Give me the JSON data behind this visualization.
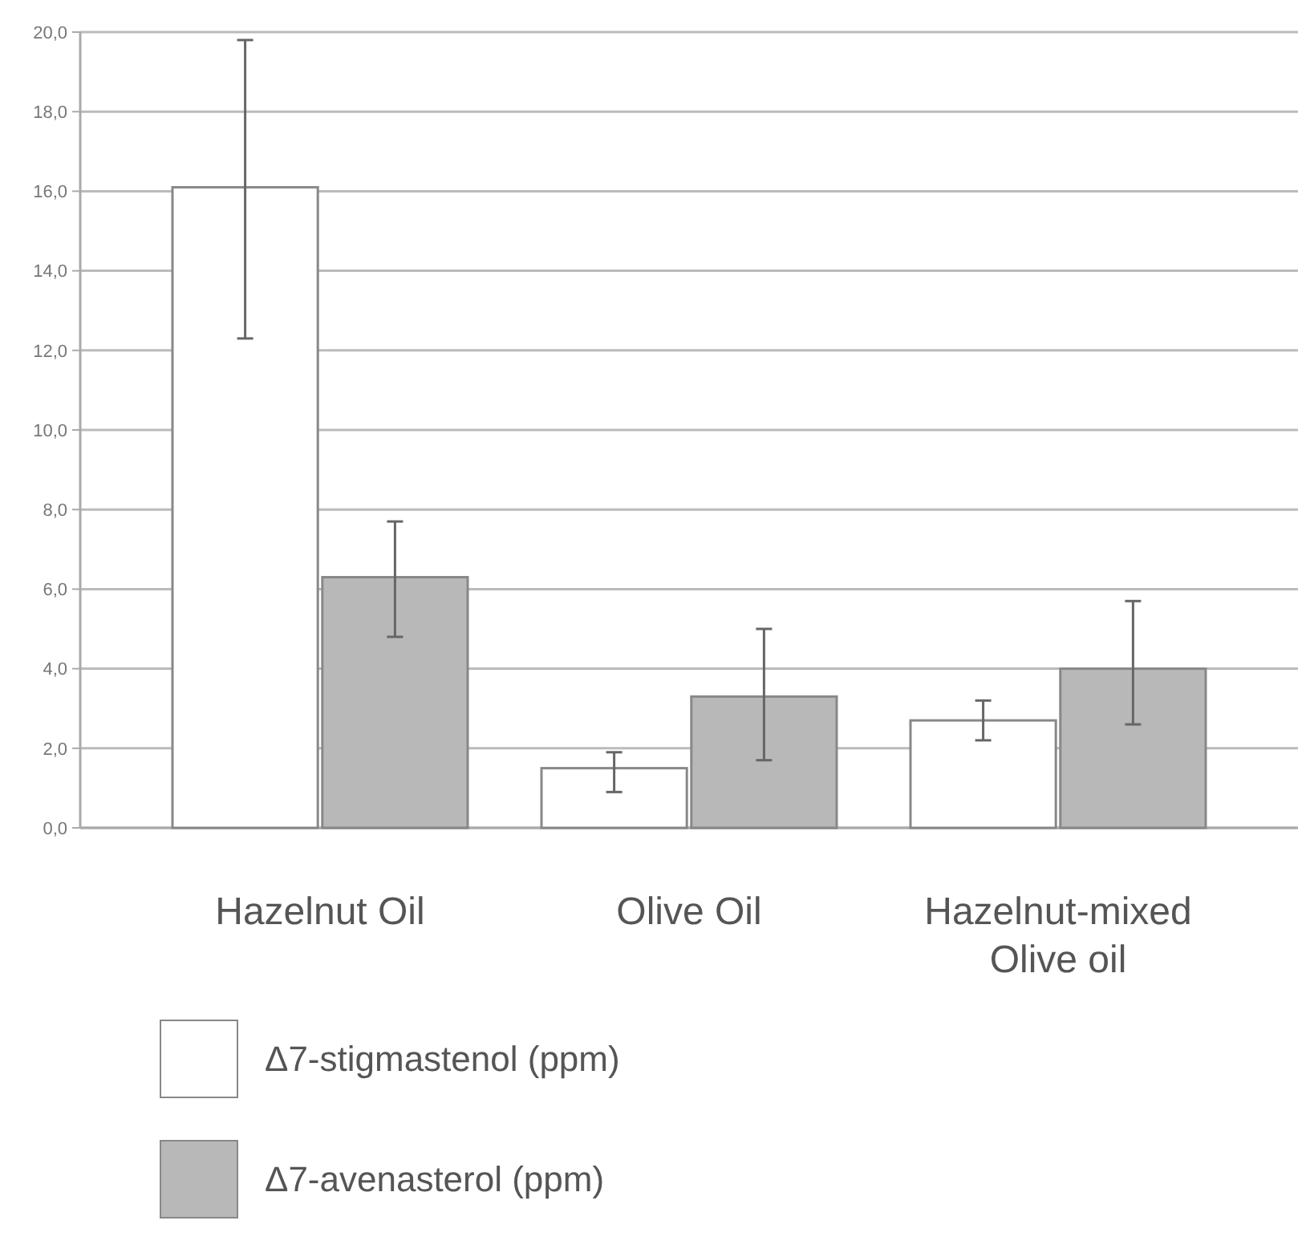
{
  "chart_data": {
    "type": "bar",
    "categories": [
      "Hazelnut  Oil",
      "Olive  Oil",
      "Hazelnut-mixed\nOlive oil"
    ],
    "series": [
      {
        "name": "Δ7-stigmastenol (ppm)",
        "color": "#ffffff",
        "values": [
          16.1,
          1.5,
          2.7
        ],
        "errors": [
          [
            12.3,
            19.8
          ],
          [
            0.9,
            1.9
          ],
          [
            2.2,
            3.2
          ]
        ]
      },
      {
        "name": "Δ7-avenasterol (ppm)",
        "color": "#b8b8b8",
        "values": [
          6.3,
          3.3,
          4.0
        ],
        "errors": [
          [
            4.8,
            7.7
          ],
          [
            1.7,
            5.0
          ],
          [
            2.6,
            5.7
          ]
        ]
      }
    ],
    "ylim": [
      0,
      20
    ],
    "yticks": [
      {
        "value": 0,
        "label": "0,0"
      },
      {
        "value": 2,
        "label": "2,0"
      },
      {
        "value": 4,
        "label": "4,0"
      },
      {
        "value": 6,
        "label": "6,0"
      },
      {
        "value": 8,
        "label": "8,0"
      },
      {
        "value": 10,
        "label": "10,0"
      },
      {
        "value": 12,
        "label": "12,0"
      },
      {
        "value": 14,
        "label": "14,0"
      },
      {
        "value": 16,
        "label": "16,0"
      },
      {
        "value": 18,
        "label": "18,0"
      },
      {
        "value": 20,
        "label": "20,0"
      }
    ],
    "grid": "y",
    "legend": "bottom"
  }
}
